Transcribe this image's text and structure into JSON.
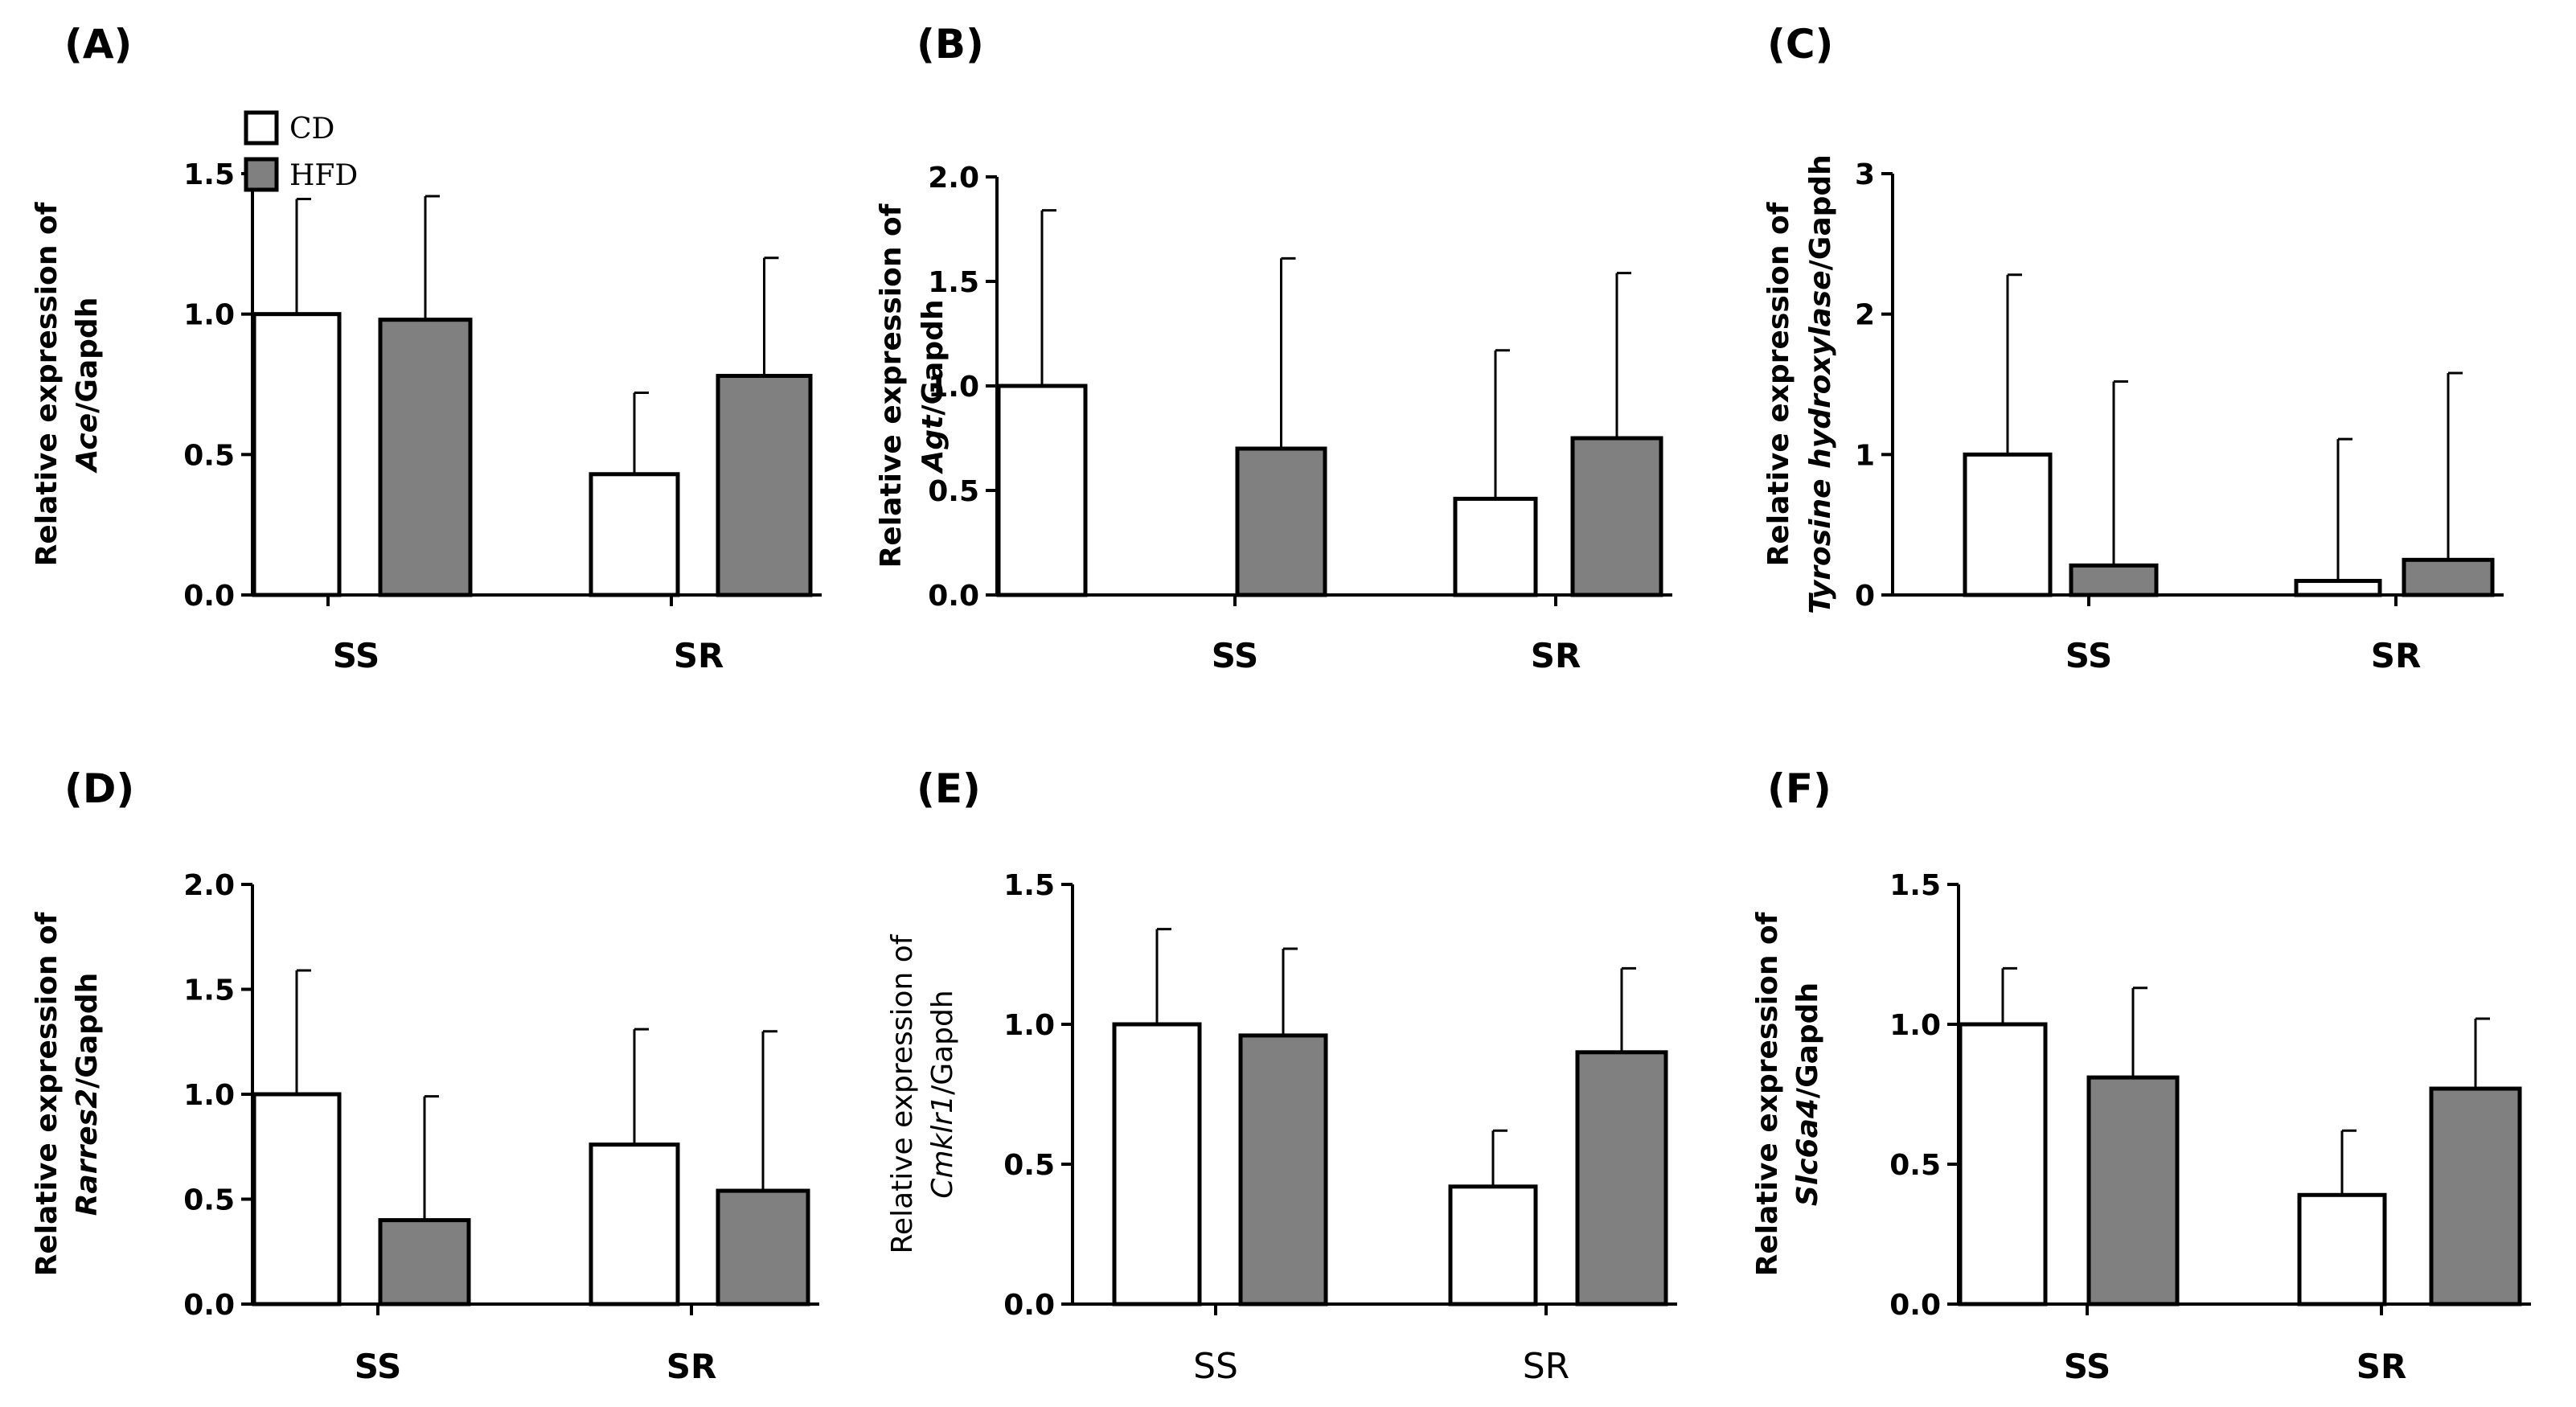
{
  "legend": {
    "entries": [
      {
        "name": "CD",
        "color": "#ffffff"
      },
      {
        "name": "HFD",
        "color": "#808080"
      }
    ]
  },
  "chart_data": [
    {
      "panel": "(A)",
      "type": "bar",
      "categories": [
        "SS",
        "SR"
      ],
      "ylabel": "Relative expression of",
      "gene": "Ace",
      "ylabel_suffix": "/Gapdh",
      "ylim": [
        0,
        1.5
      ],
      "yticks": [
        "0.0",
        "0.5",
        "1.0",
        "1.5"
      ],
      "series": [
        {
          "name": "CD",
          "values": [
            1.0,
            0.43
          ],
          "errors": [
            0.41,
            0.29
          ]
        },
        {
          "name": "HFD",
          "values": [
            0.98,
            0.78
          ],
          "errors": [
            0.44,
            0.42
          ]
        }
      ]
    },
    {
      "panel": "(B)",
      "type": "bar",
      "categories": [
        "SS",
        "SR"
      ],
      "ylabel": "Relative expression of",
      "gene": "Agt",
      "ylabel_suffix": "/Gapdh",
      "ylim": [
        0,
        2.0
      ],
      "yticks": [
        "0.0",
        "0.5",
        "1.0",
        "1.5",
        "2.0"
      ],
      "series": [
        {
          "name": "CD",
          "values": [
            1.0,
            0.46
          ],
          "errors": [
            0.84,
            0.71
          ]
        },
        {
          "name": "HFD",
          "values": [
            0.7,
            0.75
          ],
          "errors": [
            0.91,
            0.79
          ]
        }
      ]
    },
    {
      "panel": "(C)",
      "type": "bar",
      "categories": [
        "SS",
        "SR"
      ],
      "ylabel": "Relative expression of",
      "gene": "Tyrosine hydroxylase",
      "ylabel_suffix": "/Gapdh",
      "ylim": [
        0,
        3
      ],
      "yticks": [
        "0",
        "1",
        "2",
        "3"
      ],
      "series": [
        {
          "name": "CD",
          "values": [
            1.0,
            0.1
          ],
          "errors": [
            1.28,
            1.01
          ]
        },
        {
          "name": "HFD",
          "values": [
            0.21,
            0.25
          ],
          "errors": [
            1.31,
            1.33
          ]
        }
      ]
    },
    {
      "panel": "(D)",
      "type": "bar",
      "categories": [
        "SS",
        "SR"
      ],
      "ylabel": "Relative expression of",
      "gene": "Rarres2",
      "ylabel_suffix": "/Gapdh",
      "ylim": [
        0,
        2.0
      ],
      "yticks": [
        "0.0",
        "0.5",
        "1.0",
        "1.5",
        "2.0"
      ],
      "series": [
        {
          "name": "CD",
          "values": [
            1.0,
            0.76
          ],
          "errors": [
            0.59,
            0.55
          ]
        },
        {
          "name": "HFD",
          "values": [
            0.4,
            0.54
          ],
          "errors": [
            0.59,
            0.76
          ]
        }
      ]
    },
    {
      "panel": "(E)",
      "type": "bar",
      "categories": [
        "SS",
        "SR"
      ],
      "ylabel": "Relative expression of",
      "gene": "Cmklr1",
      "ylabel_suffix": "/Gapdh",
      "ylim": [
        0,
        1.5
      ],
      "yticks": [
        "0.0",
        "0.5",
        "1.0",
        "1.5"
      ],
      "series": [
        {
          "name": "CD",
          "values": [
            1.0,
            0.42
          ],
          "errors": [
            0.34,
            0.2
          ]
        },
        {
          "name": "HFD",
          "values": [
            0.96,
            0.9
          ],
          "errors": [
            0.31,
            0.3
          ]
        }
      ]
    },
    {
      "panel": "(F)",
      "type": "bar",
      "categories": [
        "SS",
        "SR"
      ],
      "ylabel": "Relative expression of",
      "gene": "Slc6a4",
      "ylabel_suffix": "/Gapdh",
      "ylim": [
        0,
        1.5
      ],
      "yticks": [
        "0.0",
        "0.5",
        "1.0",
        "1.5"
      ],
      "series": [
        {
          "name": "CD",
          "values": [
            1.0,
            0.39
          ],
          "errors": [
            0.2,
            0.23
          ]
        },
        {
          "name": "HFD",
          "values": [
            0.81,
            0.77
          ],
          "errors": [
            0.32,
            0.25
          ]
        }
      ]
    }
  ]
}
